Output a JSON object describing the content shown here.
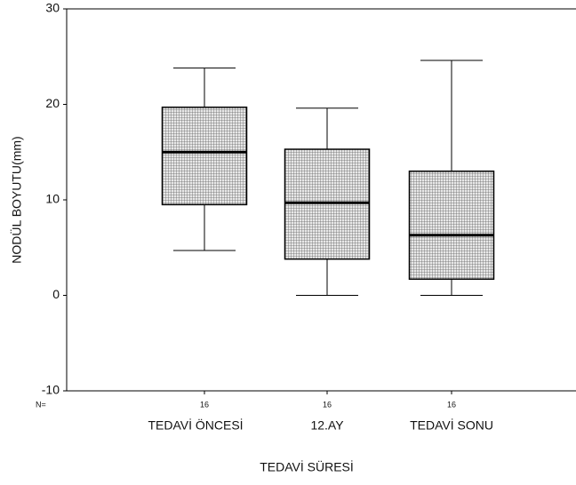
{
  "chart_data": {
    "type": "box",
    "ylabel": "NODÜL BOYUTU(mm)",
    "xlabel": "TEDAVİ SÜRESİ",
    "categories": [
      "TEDAVİ ÖNCESİ",
      "12.AY",
      "TEDAVİ SONU"
    ],
    "n_label": "N=",
    "n": [
      16,
      16,
      16
    ],
    "boxes": [
      {
        "whislo": 4.7,
        "q1": 9.5,
        "med": 15,
        "q3": 19.7,
        "whishi": 23.8
      },
      {
        "whislo": 0,
        "q1": 3.8,
        "med": 9.7,
        "q3": 15.3,
        "whishi": 19.6
      },
      {
        "whislo": 0,
        "q1": 1.7,
        "med": 6.3,
        "q3": 13,
        "whishi": 24.6
      }
    ],
    "color": "#9a9a9a",
    "ylim": [
      -10,
      30
    ],
    "yticks": [
      -10,
      0,
      10,
      20,
      30
    ]
  }
}
